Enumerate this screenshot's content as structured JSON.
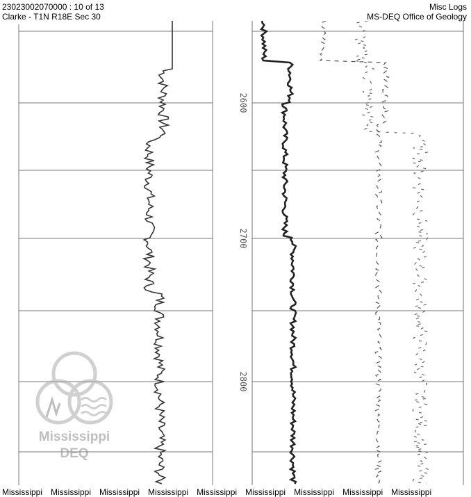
{
  "header": {
    "well_id_page": "23023002070000 : 10 of 13",
    "location": "Clarke - T1N R18E Sec 30",
    "log_type": "Misc Logs",
    "source": "MS-DEQ Office of Geology"
  },
  "log": {
    "depth_labels": [
      "2600",
      "2700",
      "2800"
    ]
  },
  "watermark": {
    "line1": "Mississippi",
    "line2": "DEQ"
  },
  "footer": {
    "labels": [
      "Mississippi",
      "Mississippi",
      "Mississippi",
      "Mississippi",
      "Mississippi",
      "Mississippi",
      "Mississippi",
      "Mississippi",
      "Mississippi"
    ]
  }
}
